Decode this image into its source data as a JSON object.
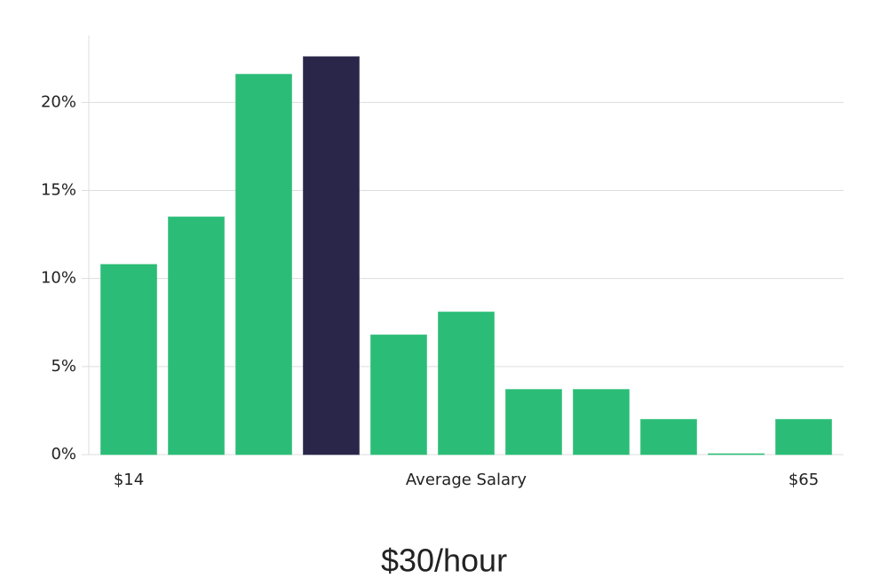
{
  "chart_data": {
    "type": "bar",
    "categories": [
      "$14",
      null,
      null,
      null,
      null,
      null,
      null,
      null,
      null,
      null,
      "$65"
    ],
    "values": [
      10.8,
      13.5,
      21.6,
      22.6,
      6.8,
      8.1,
      3.7,
      3.7,
      2.0,
      0.05,
      2.0
    ],
    "colors": [
      "#2bbd77",
      "#2bbd77",
      "#2bbd77",
      "#29264a",
      "#2bbd77",
      "#2bbd77",
      "#2bbd77",
      "#2bbd77",
      "#2bbd77",
      "#2bbd77",
      "#2bbd77"
    ],
    "x_label": "Average Salary",
    "caption": "$30/hour",
    "ylim": [
      0,
      23.8
    ],
    "yticks": [
      {
        "value": 0,
        "label": "0%"
      },
      {
        "value": 5,
        "label": "5%"
      },
      {
        "value": 10,
        "label": "10%"
      },
      {
        "value": 15,
        "label": "15%"
      },
      {
        "value": 20,
        "label": "20%"
      }
    ],
    "grid": true
  }
}
